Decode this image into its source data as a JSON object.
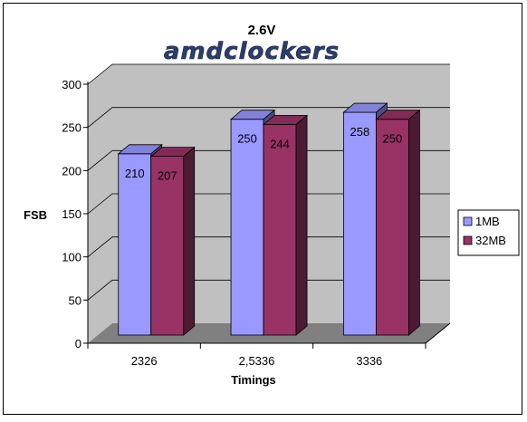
{
  "chart_data": {
    "type": "bar",
    "title": "2.6V",
    "logo_text": "amdclockers",
    "xlabel": "Timings",
    "ylabel": "FSB",
    "ylim": [
      0,
      300
    ],
    "yticks": [
      "0",
      "50",
      "100",
      "150",
      "200",
      "250",
      "300"
    ],
    "categories": [
      "2326",
      "2,5336",
      "3336"
    ],
    "grid": true,
    "three_d": true,
    "legend_position": "right",
    "series": [
      {
        "name": "1MB",
        "values": [
          210,
          250,
          258
        ],
        "labels": [
          "210",
          "250",
          "258"
        ],
        "color": "#9999ff"
      },
      {
        "name": "32MB",
        "values": [
          207,
          244,
          250
        ],
        "labels": [
          "207",
          "244",
          "250"
        ],
        "color": "#993366"
      }
    ],
    "wall_color": "#c0c0c0",
    "floor_color": "#808080"
  }
}
